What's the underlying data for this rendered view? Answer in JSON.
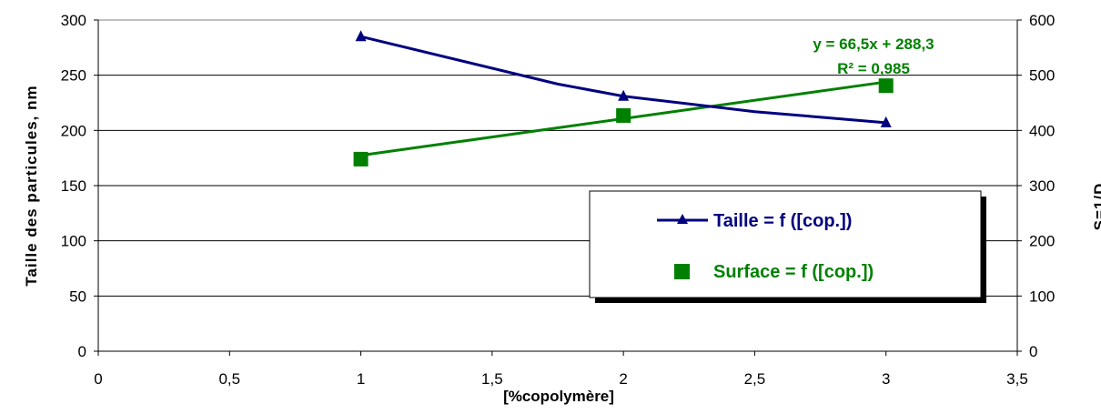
{
  "chart_data": {
    "type": "line",
    "x_label": "[%copolymère]",
    "y_left_label": "Taille des particules, nm",
    "y_right_label": "S=1/D",
    "x_ticks": [
      "0",
      "0,5",
      "1",
      "1,5",
      "2",
      "2,5",
      "3",
      "3,5"
    ],
    "y_left_ticks": [
      "0",
      "50",
      "100",
      "150",
      "200",
      "250",
      "300"
    ],
    "y_right_ticks": [
      "0",
      "100",
      "200",
      "300",
      "400",
      "500",
      "600"
    ],
    "xlim": [
      0,
      3.5
    ],
    "ylim_left": [
      0,
      300
    ],
    "ylim_right": [
      0,
      600
    ],
    "grid": "horizontal",
    "legend_position": "center-right",
    "series": [
      {
        "name": "Taille = f ([cop.])",
        "axis": "left",
        "marker": "triangle",
        "color": "#000080",
        "x": [
          1,
          1.75,
          2,
          2.5,
          3
        ],
        "values": [
          285,
          242,
          231,
          217,
          207
        ]
      },
      {
        "name": "Surface = f ([cop.])",
        "axis": "right",
        "marker": "square",
        "color": "#008000",
        "x": [
          1,
          2,
          3
        ],
        "values": [
          348,
          427,
          481
        ]
      }
    ],
    "trendline": {
      "series": "Surface = f ([cop.])",
      "equation": "y = 66,5x + 288,3",
      "r2": "R² = 0,985",
      "slope": 66.5,
      "intercept": 288.3
    }
  }
}
